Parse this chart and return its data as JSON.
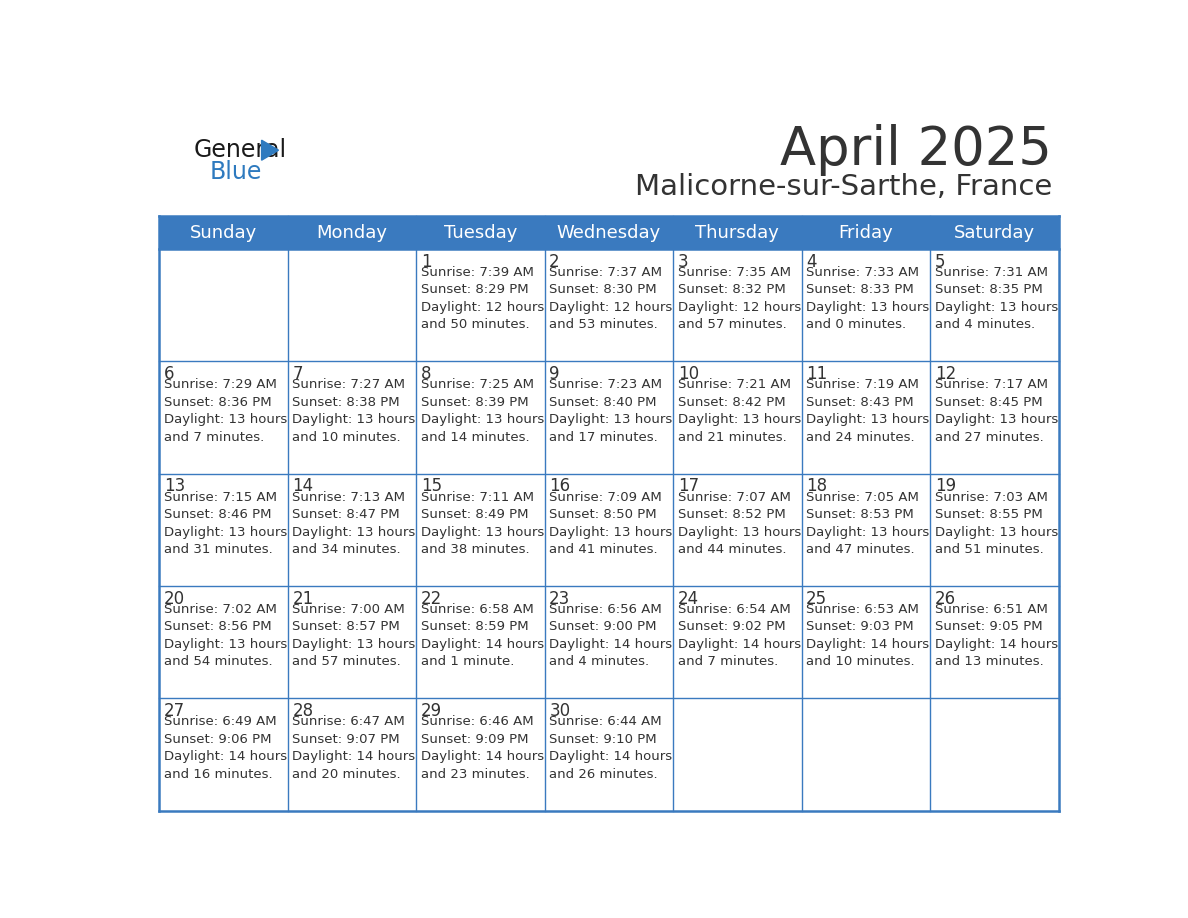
{
  "title": "April 2025",
  "subtitle": "Malicorne-sur-Sarthe, France",
  "days_of_week": [
    "Sunday",
    "Monday",
    "Tuesday",
    "Wednesday",
    "Thursday",
    "Friday",
    "Saturday"
  ],
  "header_bg": "#3a7abf",
  "header_text": "#ffffff",
  "cell_bg": "#ffffff",
  "border_color": "#3a7abf",
  "text_color": "#333333",
  "day_num_color": "#333333",
  "weeks": [
    [
      {
        "day": "",
        "info": ""
      },
      {
        "day": "",
        "info": ""
      },
      {
        "day": "1",
        "info": "Sunrise: 7:39 AM\nSunset: 8:29 PM\nDaylight: 12 hours\nand 50 minutes."
      },
      {
        "day": "2",
        "info": "Sunrise: 7:37 AM\nSunset: 8:30 PM\nDaylight: 12 hours\nand 53 minutes."
      },
      {
        "day": "3",
        "info": "Sunrise: 7:35 AM\nSunset: 8:32 PM\nDaylight: 12 hours\nand 57 minutes."
      },
      {
        "day": "4",
        "info": "Sunrise: 7:33 AM\nSunset: 8:33 PM\nDaylight: 13 hours\nand 0 minutes."
      },
      {
        "day": "5",
        "info": "Sunrise: 7:31 AM\nSunset: 8:35 PM\nDaylight: 13 hours\nand 4 minutes."
      }
    ],
    [
      {
        "day": "6",
        "info": "Sunrise: 7:29 AM\nSunset: 8:36 PM\nDaylight: 13 hours\nand 7 minutes."
      },
      {
        "day": "7",
        "info": "Sunrise: 7:27 AM\nSunset: 8:38 PM\nDaylight: 13 hours\nand 10 minutes."
      },
      {
        "day": "8",
        "info": "Sunrise: 7:25 AM\nSunset: 8:39 PM\nDaylight: 13 hours\nand 14 minutes."
      },
      {
        "day": "9",
        "info": "Sunrise: 7:23 AM\nSunset: 8:40 PM\nDaylight: 13 hours\nand 17 minutes."
      },
      {
        "day": "10",
        "info": "Sunrise: 7:21 AM\nSunset: 8:42 PM\nDaylight: 13 hours\nand 21 minutes."
      },
      {
        "day": "11",
        "info": "Sunrise: 7:19 AM\nSunset: 8:43 PM\nDaylight: 13 hours\nand 24 minutes."
      },
      {
        "day": "12",
        "info": "Sunrise: 7:17 AM\nSunset: 8:45 PM\nDaylight: 13 hours\nand 27 minutes."
      }
    ],
    [
      {
        "day": "13",
        "info": "Sunrise: 7:15 AM\nSunset: 8:46 PM\nDaylight: 13 hours\nand 31 minutes."
      },
      {
        "day": "14",
        "info": "Sunrise: 7:13 AM\nSunset: 8:47 PM\nDaylight: 13 hours\nand 34 minutes."
      },
      {
        "day": "15",
        "info": "Sunrise: 7:11 AM\nSunset: 8:49 PM\nDaylight: 13 hours\nand 38 minutes."
      },
      {
        "day": "16",
        "info": "Sunrise: 7:09 AM\nSunset: 8:50 PM\nDaylight: 13 hours\nand 41 minutes."
      },
      {
        "day": "17",
        "info": "Sunrise: 7:07 AM\nSunset: 8:52 PM\nDaylight: 13 hours\nand 44 minutes."
      },
      {
        "day": "18",
        "info": "Sunrise: 7:05 AM\nSunset: 8:53 PM\nDaylight: 13 hours\nand 47 minutes."
      },
      {
        "day": "19",
        "info": "Sunrise: 7:03 AM\nSunset: 8:55 PM\nDaylight: 13 hours\nand 51 minutes."
      }
    ],
    [
      {
        "day": "20",
        "info": "Sunrise: 7:02 AM\nSunset: 8:56 PM\nDaylight: 13 hours\nand 54 minutes."
      },
      {
        "day": "21",
        "info": "Sunrise: 7:00 AM\nSunset: 8:57 PM\nDaylight: 13 hours\nand 57 minutes."
      },
      {
        "day": "22",
        "info": "Sunrise: 6:58 AM\nSunset: 8:59 PM\nDaylight: 14 hours\nand 1 minute."
      },
      {
        "day": "23",
        "info": "Sunrise: 6:56 AM\nSunset: 9:00 PM\nDaylight: 14 hours\nand 4 minutes."
      },
      {
        "day": "24",
        "info": "Sunrise: 6:54 AM\nSunset: 9:02 PM\nDaylight: 14 hours\nand 7 minutes."
      },
      {
        "day": "25",
        "info": "Sunrise: 6:53 AM\nSunset: 9:03 PM\nDaylight: 14 hours\nand 10 minutes."
      },
      {
        "day": "26",
        "info": "Sunrise: 6:51 AM\nSunset: 9:05 PM\nDaylight: 14 hours\nand 13 minutes."
      }
    ],
    [
      {
        "day": "27",
        "info": "Sunrise: 6:49 AM\nSunset: 9:06 PM\nDaylight: 14 hours\nand 16 minutes."
      },
      {
        "day": "28",
        "info": "Sunrise: 6:47 AM\nSunset: 9:07 PM\nDaylight: 14 hours\nand 20 minutes."
      },
      {
        "day": "29",
        "info": "Sunrise: 6:46 AM\nSunset: 9:09 PM\nDaylight: 14 hours\nand 23 minutes."
      },
      {
        "day": "30",
        "info": "Sunrise: 6:44 AM\nSunset: 9:10 PM\nDaylight: 14 hours\nand 26 minutes."
      },
      {
        "day": "",
        "info": ""
      },
      {
        "day": "",
        "info": ""
      },
      {
        "day": "",
        "info": ""
      }
    ]
  ],
  "logo_general_color": "#1a1a1a",
  "logo_blue_color": "#2e7abf",
  "title_fontsize": 38,
  "subtitle_fontsize": 21,
  "header_fontsize": 13,
  "day_num_fontsize": 12,
  "info_fontsize": 9.5
}
